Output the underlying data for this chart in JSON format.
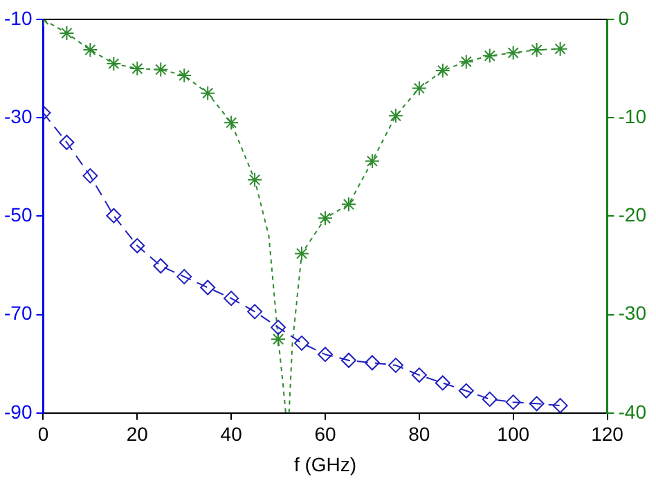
{
  "chart_data": {
    "type": "line",
    "xlabel": "f (GHz)",
    "xlim": [
      0,
      120
    ],
    "xticks": [
      0,
      20,
      40,
      60,
      80,
      100,
      120
    ],
    "ylim": [
      -90,
      -10
    ],
    "yticks": [
      -10,
      -30,
      -50,
      -70,
      -90
    ],
    "y2lim": [
      -40,
      0
    ],
    "y2ticks": [
      0,
      -10,
      -20,
      -30,
      -40
    ],
    "grid": false,
    "legend": false,
    "series": [
      {
        "axis": "y",
        "color": "#1f1fbf",
        "marker": "diamond",
        "line_style": "dashed",
        "x": [
          0,
          5,
          10,
          15,
          20,
          25,
          30,
          35,
          40,
          45,
          50,
          55,
          60,
          65,
          70,
          75,
          80,
          85,
          90,
          95,
          100,
          105,
          110
        ],
        "values": [
          -29,
          -35,
          -41.8,
          -49.9,
          -56,
          -60.1,
          -62.3,
          -64.5,
          -66.7,
          -69.4,
          -72.6,
          -75.8,
          -78.1,
          -79.3,
          -79.8,
          -80.3,
          -82.3,
          -83.9,
          -85.5,
          -87.2,
          -87.8,
          -88.1,
          -88.5
        ]
      },
      {
        "axis": "y2",
        "color": "#2e8b2e",
        "marker": "none",
        "line_style": "dotted",
        "x": [
          0,
          5,
          10,
          15,
          20,
          25,
          30,
          35,
          40,
          45,
          48,
          50,
          51,
          51.6,
          52.3,
          53,
          55,
          60,
          65,
          70,
          75,
          80,
          85,
          90,
          95,
          100,
          105,
          110
        ],
        "values": [
          0,
          -1.4,
          -3.1,
          -4.5,
          -5,
          -5.1,
          -5.7,
          -7.5,
          -10.5,
          -16.3,
          -22,
          -32.5,
          -37,
          -40,
          -40,
          -33,
          -23.8,
          -20.2,
          -18.8,
          -14.4,
          -9.8,
          -7,
          -5.2,
          -4.3,
          -3.7,
          -3.4,
          -3.1,
          -3
        ]
      },
      {
        "type": "scatter",
        "axis": "y2",
        "color": "#2e8b2e",
        "marker": "cross",
        "x": [
          0,
          5,
          10,
          15,
          20,
          25,
          30,
          35,
          40,
          45,
          50,
          55,
          60,
          65,
          70,
          75,
          80,
          85,
          90,
          95,
          100,
          105,
          110
        ],
        "values": [
          0,
          -1.4,
          -3.1,
          -4.5,
          -5,
          -5.1,
          -5.7,
          -7.5,
          -10.5,
          -16.3,
          -32.5,
          -23.8,
          -20.2,
          -18.8,
          -14.4,
          -9.8,
          -7,
          -5.2,
          -4.3,
          -3.7,
          -3.4,
          -3.1,
          -3
        ]
      }
    ]
  }
}
